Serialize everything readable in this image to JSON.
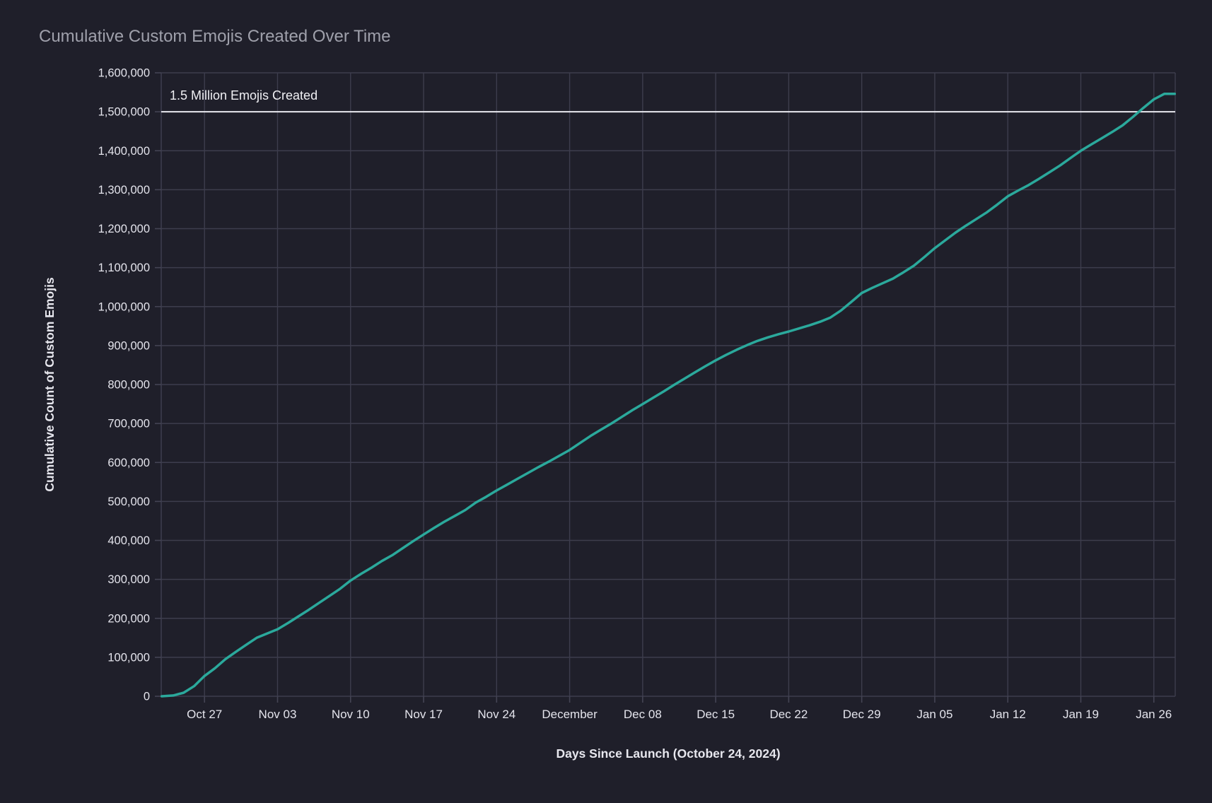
{
  "chart_data": {
    "type": "line",
    "title": "Cumulative Custom Emojis Created Over Time",
    "xlabel": "Days Since Launch (October 24, 2024)",
    "ylabel": "Cumulative Count of Custom Emojis",
    "annotation": {
      "text": "1.5 Million Emojis Created",
      "value": 1500000
    },
    "x_domain": [
      -1.15,
      96.05
    ],
    "ylim": [
      0,
      1600000
    ],
    "grid": true,
    "legend": "none",
    "x_ticks": [
      {
        "label": "Oct 27",
        "day": 3
      },
      {
        "label": "Nov 03",
        "day": 10
      },
      {
        "label": "Nov 10",
        "day": 17
      },
      {
        "label": "Nov 17",
        "day": 24
      },
      {
        "label": "Nov 24",
        "day": 31
      },
      {
        "label": "December",
        "day": 38
      },
      {
        "label": "Dec 08",
        "day": 45
      },
      {
        "label": "Dec 15",
        "day": 52
      },
      {
        "label": "Dec 22",
        "day": 59
      },
      {
        "label": "Dec 29",
        "day": 66
      },
      {
        "label": "Jan 05",
        "day": 73
      },
      {
        "label": "Jan 12",
        "day": 80
      },
      {
        "label": "Jan 19",
        "day": 87
      },
      {
        "label": "Jan 26",
        "day": 94
      }
    ],
    "y_ticks": [
      0,
      100000,
      200000,
      300000,
      400000,
      500000,
      600000,
      700000,
      800000,
      900000,
      1000000,
      1100000,
      1200000,
      1300000,
      1400000,
      1500000,
      1600000
    ],
    "series": [
      {
        "name": "cumulative-emojis",
        "color": "#2ba99c",
        "points": [
          [
            -1.1,
            0
          ],
          [
            0,
            2000
          ],
          [
            1,
            9000
          ],
          [
            2,
            26000
          ],
          [
            3,
            52000
          ],
          [
            4,
            72000
          ],
          [
            5,
            95000
          ],
          [
            6,
            114000
          ],
          [
            7,
            132000
          ],
          [
            8,
            150000
          ],
          [
            9,
            161000
          ],
          [
            10,
            172000
          ],
          [
            11,
            188000
          ],
          [
            12,
            205000
          ],
          [
            13,
            222000
          ],
          [
            14,
            240000
          ],
          [
            15,
            258000
          ],
          [
            16,
            276000
          ],
          [
            17,
            297000
          ],
          [
            18,
            314000
          ],
          [
            19,
            330000
          ],
          [
            20,
            347000
          ],
          [
            21,
            362000
          ],
          [
            22,
            380000
          ],
          [
            23,
            398000
          ],
          [
            24,
            415000
          ],
          [
            25,
            432000
          ],
          [
            26,
            448000
          ],
          [
            27,
            463000
          ],
          [
            28,
            478000
          ],
          [
            29,
            497000
          ],
          [
            30,
            512000
          ],
          [
            31,
            528000
          ],
          [
            32,
            543000
          ],
          [
            33,
            558000
          ],
          [
            34,
            573000
          ],
          [
            35,
            588000
          ],
          [
            36,
            602000
          ],
          [
            37,
            617000
          ],
          [
            38,
            632000
          ],
          [
            39,
            650000
          ],
          [
            40,
            668000
          ],
          [
            41,
            684000
          ],
          [
            42,
            700000
          ],
          [
            43,
            717000
          ],
          [
            44,
            734000
          ],
          [
            45,
            750000
          ],
          [
            46,
            766000
          ],
          [
            47,
            782000
          ],
          [
            48,
            799000
          ],
          [
            49,
            815000
          ],
          [
            50,
            831000
          ],
          [
            51,
            847000
          ],
          [
            52,
            862000
          ],
          [
            53,
            876000
          ],
          [
            54,
            889000
          ],
          [
            55,
            901000
          ],
          [
            56,
            912000
          ],
          [
            57,
            921000
          ],
          [
            58,
            929000
          ],
          [
            59,
            936000
          ],
          [
            60,
            944000
          ],
          [
            61,
            952000
          ],
          [
            62,
            961000
          ],
          [
            63,
            972000
          ],
          [
            64,
            990000
          ],
          [
            65,
            1012000
          ],
          [
            66,
            1035000
          ],
          [
            67,
            1048000
          ],
          [
            68,
            1060000
          ],
          [
            69,
            1072000
          ],
          [
            70,
            1088000
          ],
          [
            71,
            1105000
          ],
          [
            72,
            1127000
          ],
          [
            73,
            1150000
          ],
          [
            74,
            1170000
          ],
          [
            75,
            1190000
          ],
          [
            76,
            1208000
          ],
          [
            77,
            1225000
          ],
          [
            78,
            1242000
          ],
          [
            79,
            1262000
          ],
          [
            80,
            1283000
          ],
          [
            81,
            1298000
          ],
          [
            82,
            1312000
          ],
          [
            83,
            1328000
          ],
          [
            84,
            1345000
          ],
          [
            85,
            1362000
          ],
          [
            86,
            1381000
          ],
          [
            87,
            1400000
          ],
          [
            88,
            1416000
          ],
          [
            89,
            1432000
          ],
          [
            90,
            1448000
          ],
          [
            91,
            1465000
          ],
          [
            92,
            1487000
          ],
          [
            93,
            1510000
          ],
          [
            94,
            1532000
          ],
          [
            95,
            1546000
          ],
          [
            96,
            1546000
          ]
        ]
      }
    ],
    "colors": {
      "background": "#1f1f2a",
      "grid": "#3d3d4d",
      "axis_line": "#3d3d4d",
      "tick_mark": "#444454",
      "tick_label": "#e4e4ec",
      "title": "#9fa0ab",
      "axis_title": "#e7e7ee",
      "annotation_line": "#e8e8ef",
      "annotation_text": "#f0f0f4",
      "line": "#2ba99c"
    }
  }
}
